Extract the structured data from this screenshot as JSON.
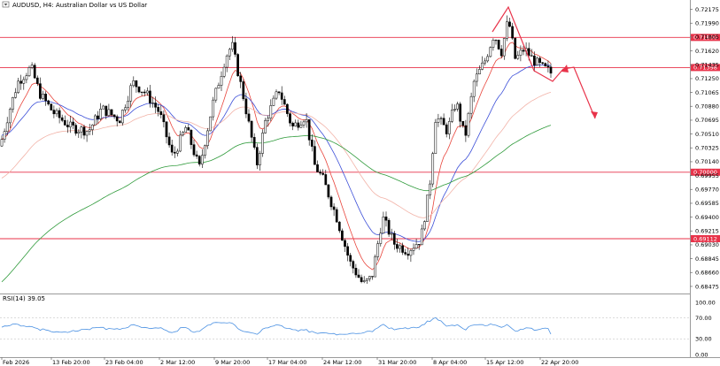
{
  "chart_data": {
    "type": "candlestick",
    "symbol_caption": "AUDUSD, H4:  Australian Dollar vs US Dollar",
    "price_axis_ticks": [
      "0.72175",
      "0.71990",
      "0.71805",
      "0.71620",
      "0.71435",
      "0.71250",
      "0.71065",
      "0.70880",
      "0.70695",
      "0.70510",
      "0.70325",
      "0.70140",
      "0.69955",
      "0.69770",
      "0.69585",
      "0.69400",
      "0.69215",
      "0.69030",
      "0.68845",
      "0.68660",
      "0.68475"
    ],
    "time_axis_labels": [
      "Feb 2026",
      "13 Feb 20:00",
      "23 Feb 04:00",
      "2 Mar 12:00",
      "9 Mar 20:00",
      "17 Mar 04:00",
      "24 Mar 12:00",
      "31 Mar 20:00",
      "8 Apr 04:00",
      "15 Apr 12:00",
      "22 Apr 20:00"
    ],
    "horizontal_levels": [
      {
        "label": "0.71800",
        "value": 0.718,
        "color": "#e8334a"
      },
      {
        "label": "0.71398",
        "value": 0.71398,
        "color": "#e8334a"
      },
      {
        "label": "0.70000",
        "value": 0.7,
        "color": "#e8334a"
      },
      {
        "label": "0.69112",
        "value": 0.69112,
        "color": "#e8334a"
      }
    ],
    "current_price": 0.7129,
    "y_range": [
      0.6838,
      0.723
    ],
    "moving_average_colors": {
      "fast": "#e8453c",
      "medium": "#3c4fd8",
      "slow": "#f2b3a8",
      "long": "#2e9a3a"
    },
    "candle_color": "#000000",
    "arrow_color": "#e8334a",
    "rsi_panel": {
      "caption": "RSI(14) 39.05",
      "ticks": [
        "100.00",
        "70.00",
        "30.00",
        "0.00"
      ],
      "levels": [
        70,
        30
      ],
      "last_value": 39.05,
      "color": "#4a90e2"
    }
  }
}
